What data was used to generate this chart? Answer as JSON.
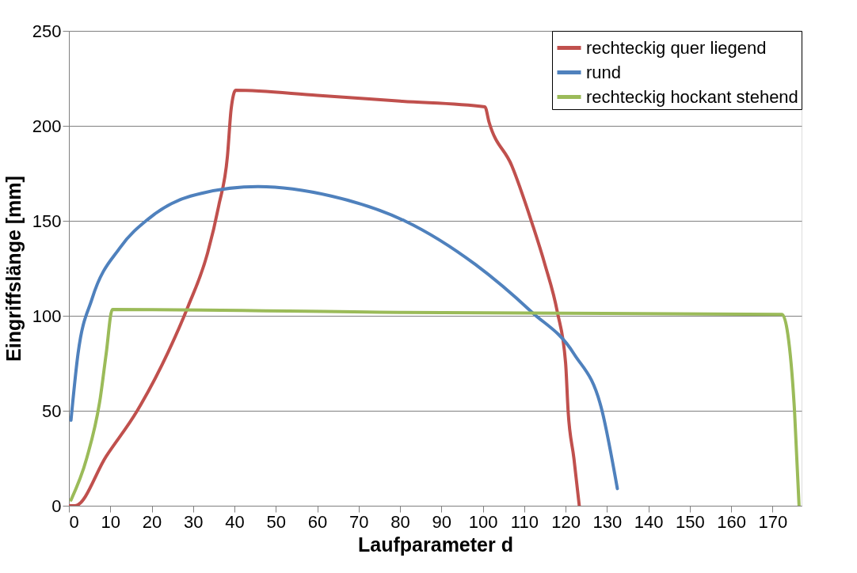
{
  "chart_data": {
    "type": "line",
    "xlabel": "Laufparameter d",
    "ylabel": "Eingriffslänge [mm]",
    "xlim": [
      0,
      177
    ],
    "xticks": [
      0,
      10,
      20,
      30,
      40,
      50,
      60,
      70,
      80,
      90,
      100,
      110,
      120,
      130,
      140,
      150,
      160,
      170
    ],
    "ylim": [
      0,
      250
    ],
    "yticks": [
      0,
      50,
      100,
      150,
      200,
      250
    ],
    "grid": "y",
    "legend": "top right",
    "marker": "none",
    "line_style": "solid",
    "series": [
      {
        "name": "rechteckig quer liegend",
        "color": "#c0504d",
        "x": [
          0,
          1.5,
          9,
          16.5,
          24,
          28.8,
          33.5,
          36.2,
          38.3,
          39.2,
          40.3,
          60,
          80,
          100.5,
          101.5,
          107,
          112,
          115,
          118,
          120,
          120.6,
          122,
          123.3
        ],
        "values": [
          0,
          0,
          26,
          50,
          81,
          105,
          133,
          158,
          184,
          209,
          218.7,
          216,
          213,
          210,
          202,
          179,
          148,
          127,
          102,
          75,
          50,
          25,
          0
        ]
      },
      {
        "name": "rund",
        "color": "#4f81bd",
        "x": [
          0.5,
          2.2,
          5.6,
          12.4,
          19.2,
          29.4,
          45.7,
          63.4,
          81.1,
          98.2,
          111.8,
          122,
          128.8,
          132.5
        ],
        "values": [
          45,
          80,
          109,
          136,
          151,
          163,
          168,
          163,
          150,
          127,
          102,
          80,
          50,
          9
        ]
      },
      {
        "name": "rechteckig hockant stehend",
        "color": "#9bbb59",
        "x": [
          0.5,
          4.3,
          7.6,
          9,
          10.5,
          80,
          172.3,
          173.7,
          175.3,
          176.4
        ],
        "values": [
          3,
          25,
          57,
          80,
          103.3,
          101.8,
          100.7,
          90,
          50,
          0
        ]
      }
    ]
  }
}
